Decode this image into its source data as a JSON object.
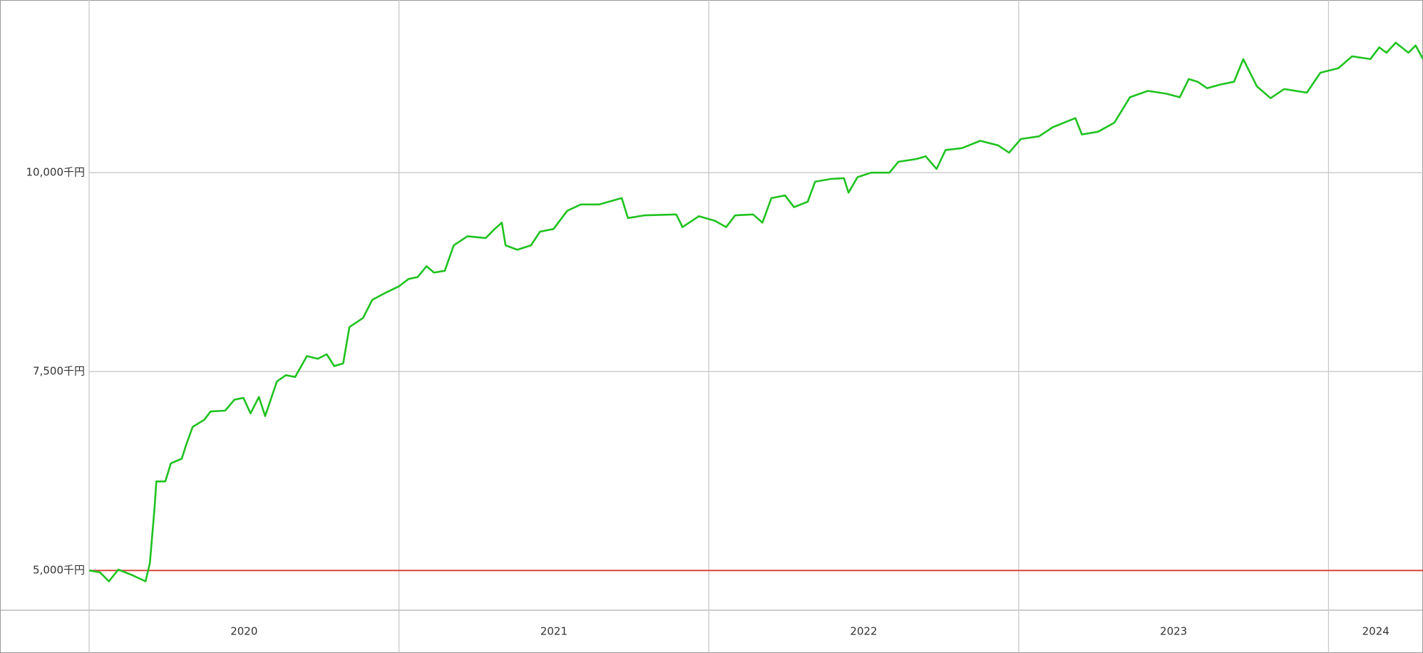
{
  "chart_data": {
    "type": "line",
    "x": [
      2020.0,
      2020.035,
      2020.064,
      2020.094,
      2020.138,
      2020.182,
      2020.196,
      2020.211,
      2020.217,
      2020.246,
      2020.264,
      2020.299,
      2020.313,
      2020.334,
      2020.372,
      2020.392,
      2020.439,
      2020.469,
      2020.498,
      2020.521,
      2020.548,
      2020.568,
      2020.606,
      2020.635,
      2020.665,
      2020.703,
      2020.738,
      2020.767,
      2020.791,
      2020.82,
      2020.84,
      2020.884,
      2020.914,
      2020.958,
      2021.001,
      2021.031,
      2021.06,
      2021.089,
      2021.113,
      2021.148,
      2021.177,
      2021.221,
      2021.28,
      2021.309,
      2021.332,
      2021.344,
      2021.382,
      2021.426,
      2021.455,
      2021.499,
      2021.543,
      2021.587,
      2021.646,
      2021.719,
      2021.739,
      2021.792,
      2021.895,
      2021.915,
      2021.968,
      2022.02,
      2022.056,
      2022.085,
      2022.143,
      2022.173,
      2022.202,
      2022.246,
      2022.275,
      2022.319,
      2022.343,
      2022.392,
      2022.436,
      2022.451,
      2022.48,
      2022.524,
      2022.583,
      2022.612,
      2022.671,
      2022.7,
      2022.735,
      2022.764,
      2022.817,
      2022.876,
      2022.934,
      2022.969,
      2023.007,
      2023.066,
      2023.11,
      2023.183,
      2023.204,
      2023.256,
      2023.309,
      2023.359,
      2023.417,
      2023.476,
      2023.52,
      2023.549,
      2023.578,
      2023.608,
      2023.652,
      2023.695,
      2023.725,
      2023.769,
      2023.813,
      2023.857,
      2023.93,
      2023.974,
      2024.032,
      2024.076,
      2024.135,
      2024.164,
      2024.187,
      2024.217,
      2024.258,
      2024.281,
      2024.305
    ],
    "values": [
      5000,
      4977,
      4863,
      5011,
      4943,
      4863,
      5091,
      5776,
      6119,
      6119,
      6347,
      6404,
      6575,
      6804,
      6895,
      6998,
      7009,
      7146,
      7169,
      6975,
      7180,
      6941,
      7375,
      7454,
      7432,
      7694,
      7660,
      7717,
      7569,
      7603,
      8059,
      8173,
      8401,
      8493,
      8573,
      8664,
      8687,
      8824,
      8744,
      8767,
      9087,
      9201,
      9178,
      9292,
      9372,
      9087,
      9030,
      9087,
      9258,
      9292,
      9520,
      9600,
      9600,
      9680,
      9429,
      9463,
      9475,
      9315,
      9452,
      9395,
      9315,
      9463,
      9475,
      9372,
      9680,
      9714,
      9566,
      9634,
      9886,
      9920,
      9931,
      9749,
      9943,
      10000,
      10000,
      10137,
      10172,
      10206,
      10046,
      10285,
      10308,
      10400,
      10343,
      10251,
      10423,
      10457,
      10571,
      10685,
      10480,
      10514,
      10628,
      10948,
      11028,
      10993,
      10948,
      11176,
      11142,
      11062,
      11108,
      11142,
      11427,
      11085,
      10936,
      11051,
      11005,
      11256,
      11313,
      11462,
      11427,
      11575,
      11507,
      11633,
      11507,
      11598,
      11427
    ],
    "color": "#1fc21f",
    "xlim": [
      2020,
      2024.305
    ],
    "xticks": [
      2020,
      2021,
      2022,
      2023,
      2024
    ],
    "ylim": [
      4500,
      12170
    ],
    "yticks": [
      {
        "value": 5000,
        "label": "5,000千円"
      },
      {
        "value": 7500,
        "label": "7,500千円"
      },
      {
        "value": 10000,
        "label": "10,000千円"
      }
    ],
    "reference_line": {
      "value": 5000,
      "color": "#d9453c"
    },
    "grid": true
  }
}
